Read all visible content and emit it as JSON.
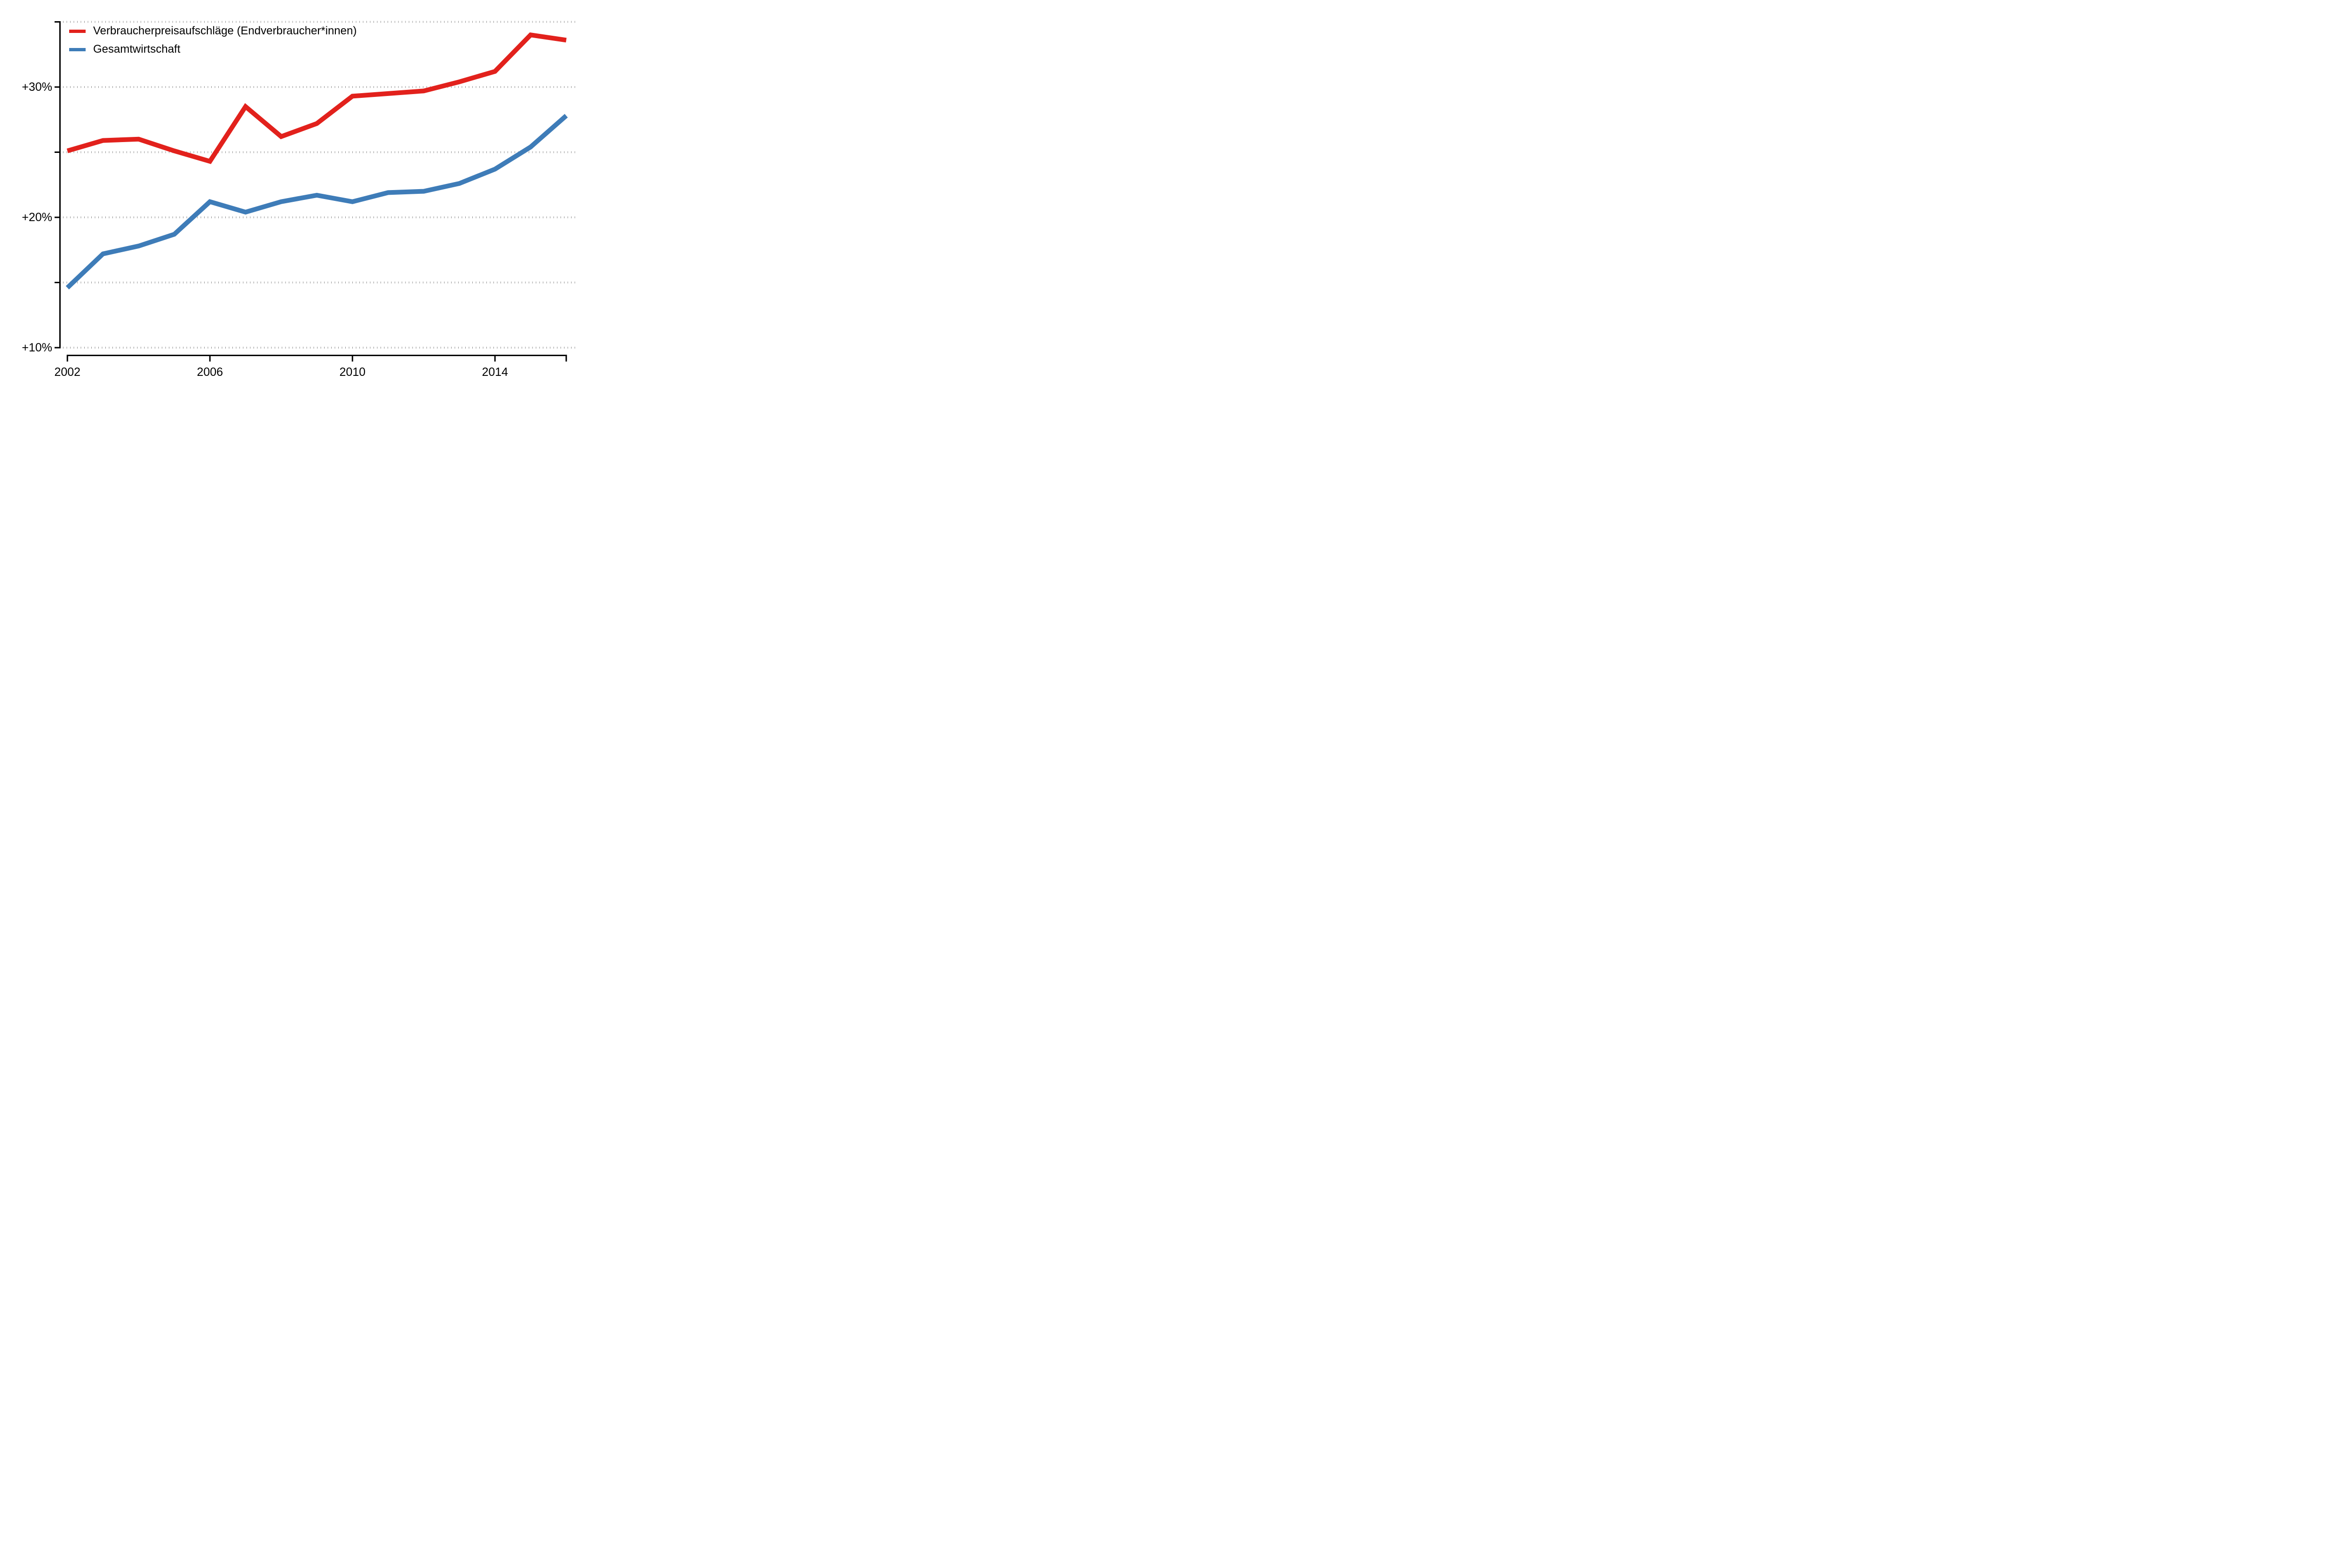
{
  "legend": {
    "items": [
      {
        "label": "Verbraucherpreisaufschläge (Endverbraucher*innen)",
        "color": "#e2211c"
      },
      {
        "label": "Gesamtwirtschaft",
        "color": "#3e7cb8"
      }
    ]
  },
  "axes": {
    "y_major_labels": [
      "+30%",
      "+20%",
      "+10%"
    ],
    "x_labels": [
      "2002",
      "2006",
      "2010",
      "2014"
    ]
  },
  "chart_data": {
    "type": "line",
    "x": [
      2002,
      2003,
      2004,
      2005,
      2006,
      2007,
      2008,
      2009,
      2010,
      2011,
      2012,
      2013,
      2014,
      2015,
      2016
    ],
    "series": [
      {
        "name": "Verbraucherpreisaufschläge (Endverbraucher*innen)",
        "color": "#e2211c",
        "values": [
          25.1,
          25.9,
          26.0,
          25.1,
          24.3,
          28.5,
          26.2,
          27.2,
          29.3,
          29.5,
          29.7,
          30.4,
          31.2,
          34.0,
          33.6
        ]
      },
      {
        "name": "Gesamtwirtschaft",
        "color": "#3e7cb8",
        "values": [
          14.6,
          17.2,
          17.8,
          18.7,
          21.2,
          20.4,
          21.2,
          21.7,
          21.2,
          21.9,
          22.0,
          22.6,
          23.7,
          25.4,
          27.8
        ]
      }
    ],
    "title": "",
    "xlabel": "",
    "ylabel": "",
    "xlim": [
      2002,
      2016
    ],
    "ylim": [
      10,
      35
    ],
    "grid_y_values": [
      35,
      30,
      25,
      20,
      15,
      10
    ],
    "y_major_ticks": [
      {
        "value": 30,
        "label": "+30%"
      },
      {
        "value": 20,
        "label": "+20%"
      },
      {
        "value": 10,
        "label": "+10%"
      }
    ],
    "x_major_ticks": [
      {
        "value": 2002,
        "label": "2002"
      },
      {
        "value": 2006,
        "label": "2006"
      },
      {
        "value": 2010,
        "label": "2010"
      },
      {
        "value": 2014,
        "label": "2014"
      }
    ],
    "grid_style": "dotted-horizontal",
    "legend_position": "top-left"
  }
}
